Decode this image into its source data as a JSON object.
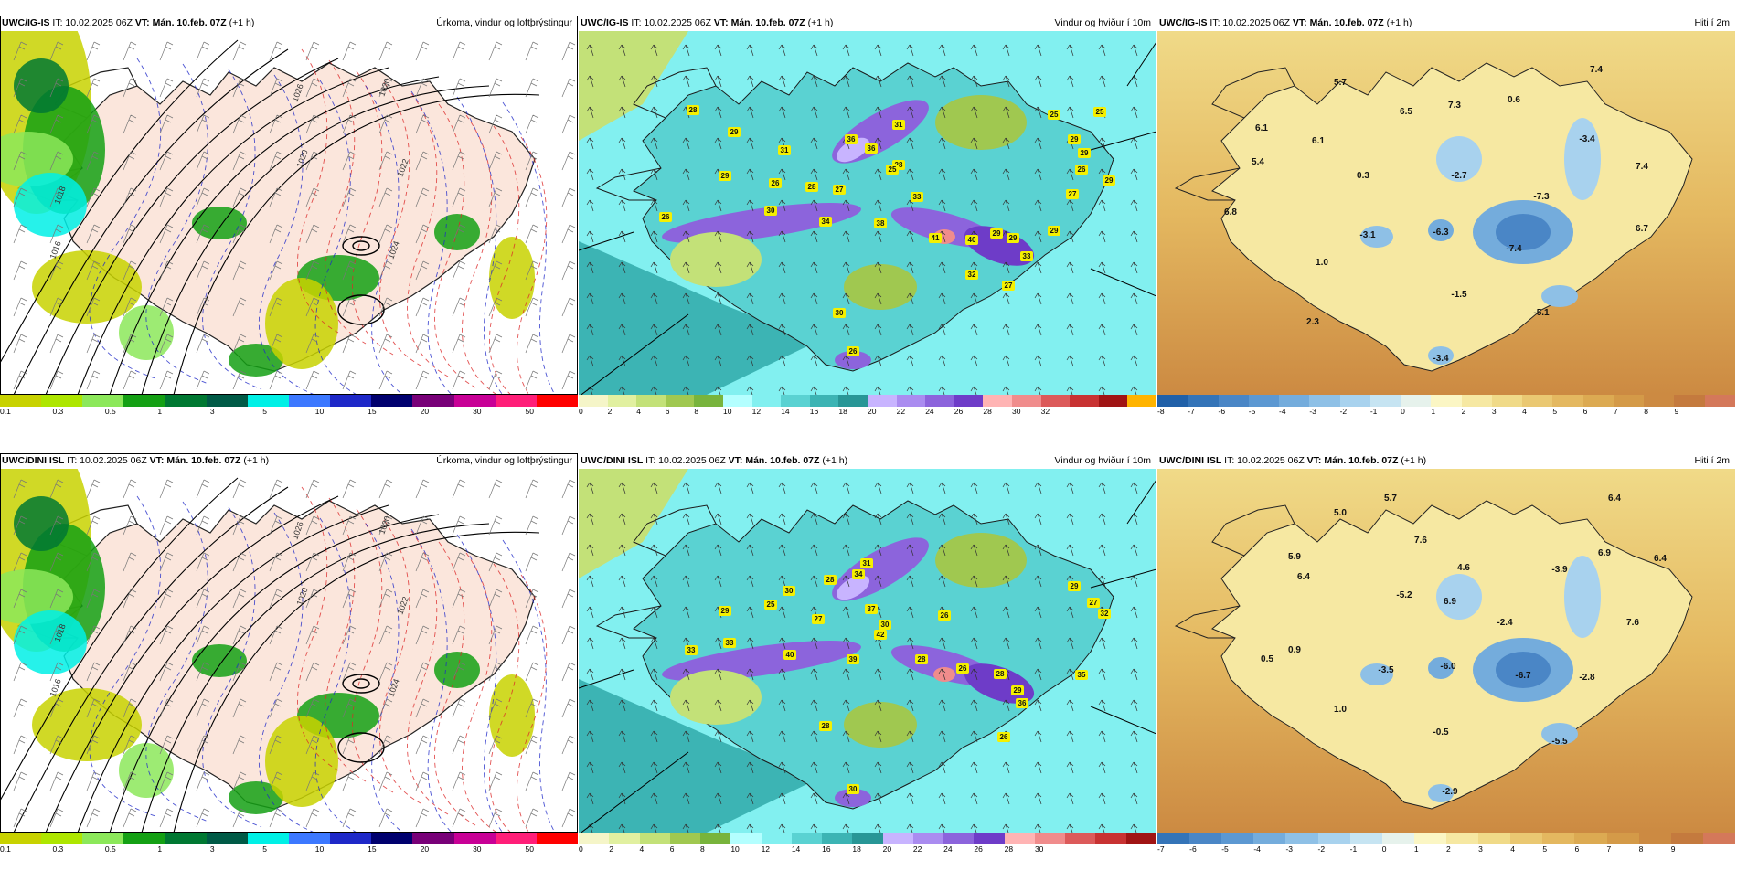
{
  "panels": [
    {
      "id": "p1",
      "model": "UWC/IG-IS",
      "issue": "IT: 10.02.2025 06Z",
      "valid": "VT: Mán. 10.feb. 07Z",
      "lead": "(+1 h)",
      "title": "Úrkoma, vindur og loftþrýstingur",
      "kind": "precip",
      "colorbar": {
        "colors": [
          "#c8d200",
          "#aee600",
          "#8ce85a",
          "#14a014",
          "#007832",
          "#005a46",
          "#00f0e6",
          "#3c78ff",
          "#1e28c8",
          "#00006e",
          "#780078",
          "#c80096",
          "#ff1e78",
          "#ff0000"
        ],
        "ticks": [
          "0.1",
          "0.3",
          "0.5",
          "1",
          "3",
          "5",
          "10",
          "15",
          "20",
          "30",
          "50"
        ]
      },
      "map_labels": [],
      "contour_labels": [
        "1020",
        "1022",
        "1024",
        "1016",
        "1018",
        "1020",
        "1026"
      ]
    },
    {
      "id": "p2",
      "model": "UWC/IG-IS",
      "issue": "IT: 10.02.2025 06Z",
      "valid": "VT: Mán. 10.feb. 07Z",
      "lead": "(+1 h)",
      "title": "Vindur og hviður í 10m",
      "kind": "wind",
      "colorbar": {
        "colors": [
          "#f5f5c8",
          "#e1f0a0",
          "#c3e178",
          "#a0c850",
          "#78b43c",
          "#b4ffff",
          "#82f0f0",
          "#5ad2d2",
          "#3cb4b4",
          "#289696",
          "#c8b4ff",
          "#aa8cf0",
          "#8c64dc",
          "#6e3cc8",
          "#ffb4b4",
          "#f08c8c",
          "#dc5a5a",
          "#c83232",
          "#a01414",
          "#ffb400"
        ],
        "ticks": [
          "0",
          "2",
          "4",
          "6",
          "8",
          "10",
          "12",
          "14",
          "16",
          "18",
          "20",
          "22",
          "24",
          "26",
          "28",
          "30",
          "32"
        ]
      },
      "map_labels": [
        "28",
        "29",
        "31",
        "31",
        "36",
        "36",
        "28",
        "29",
        "26",
        "28",
        "27",
        "30",
        "25",
        "34",
        "38",
        "33",
        "26",
        "41",
        "40",
        "29",
        "29",
        "33",
        "29",
        "25",
        "26",
        "29",
        "27",
        "32",
        "27",
        "30",
        "26",
        "25",
        "29",
        "29"
      ]
    },
    {
      "id": "p3",
      "model": "UWC/IG-IS",
      "issue": "IT: 10.02.2025 06Z",
      "valid": "VT: Mán. 10.feb. 07Z",
      "lead": "(+1 h)",
      "title": "Hiti í 2m",
      "kind": "temp",
      "colorbar": {
        "colors": [
          "#2060a8",
          "#3474b8",
          "#4a86c6",
          "#5c98d2",
          "#74acdc",
          "#8ec0e6",
          "#a8d2ee",
          "#c6e4f2",
          "#e6f2ec",
          "#fbf6c4",
          "#f6e8a2",
          "#f0da88",
          "#eac872",
          "#e4b860",
          "#dcaa52",
          "#d49a48",
          "#cc8a42",
          "#c47a3e",
          "#d4785a"
        ],
        "ticks": [
          "-8",
          "-7",
          "-6",
          "-5",
          "-4",
          "-3",
          "-2",
          "-1",
          "0",
          "1",
          "2",
          "3",
          "4",
          "5",
          "6",
          "7",
          "8",
          "9"
        ]
      },
      "map_labels": [
        "5.7",
        "6.1",
        "5.4",
        "6.1",
        "6.5",
        "7.3",
        "0.6",
        "7.4",
        "-3.4",
        "7.4",
        "0.3",
        "-2.7",
        "6.8",
        "-3.1",
        "-6.3",
        "-7.3",
        "6.7",
        "-7.4",
        "1.0",
        "-1.5",
        "-5.1",
        "2.3",
        "-3.4"
      ]
    },
    {
      "id": "p4",
      "model": "UWC/DINI ISL",
      "issue": "IT: 10.02.2025 06Z",
      "valid": "VT: Mán. 10.feb. 07Z",
      "lead": "(+1 h)",
      "title": "Úrkoma, vindur og loftþrýstingur",
      "kind": "precip",
      "colorbar": {
        "colors": [
          "#c8d200",
          "#aee600",
          "#8ce85a",
          "#14a014",
          "#007832",
          "#005a46",
          "#00f0e6",
          "#3c78ff",
          "#1e28c8",
          "#00006e",
          "#780078",
          "#c80096",
          "#ff1e78",
          "#ff0000"
        ],
        "ticks": [
          "0.1",
          "0.3",
          "0.5",
          "1",
          "3",
          "5",
          "10",
          "15",
          "20",
          "30",
          "50"
        ]
      },
      "map_labels": [],
      "contour_labels": [
        "1020",
        "1022",
        "1024",
        "1016",
        "1018",
        "1020",
        "1026"
      ]
    },
    {
      "id": "p5",
      "model": "UWC/DINI ISL",
      "issue": "IT: 10.02.2025 06Z",
      "valid": "VT: Mán. 10.feb. 07Z",
      "lead": "(+1 h)",
      "title": "Vindur og hviður í 10m",
      "kind": "wind",
      "colorbar": {
        "colors": [
          "#f5f5c8",
          "#e1f0a0",
          "#c3e178",
          "#a0c850",
          "#78b43c",
          "#b4ffff",
          "#82f0f0",
          "#5ad2d2",
          "#3cb4b4",
          "#289696",
          "#c8b4ff",
          "#aa8cf0",
          "#8c64dc",
          "#6e3cc8",
          "#ffb4b4",
          "#f08c8c",
          "#dc5a5a",
          "#c83232",
          "#a01414"
        ],
        "ticks": [
          "0",
          "2",
          "4",
          "6",
          "8",
          "10",
          "12",
          "14",
          "16",
          "18",
          "20",
          "22",
          "24",
          "26",
          "28",
          "30"
        ]
      },
      "map_labels": [
        "31",
        "28",
        "34",
        "30",
        "25",
        "37",
        "29",
        "27",
        "30",
        "26",
        "29",
        "27",
        "32",
        "33",
        "33",
        "40",
        "42",
        "39",
        "28",
        "26",
        "28",
        "29",
        "35",
        "28",
        "36",
        "26",
        "30"
      ]
    },
    {
      "id": "p6",
      "model": "UWC/DINI ISL",
      "issue": "IT: 10.02.2025 06Z",
      "valid": "VT: Mán. 10.feb. 07Z",
      "lead": "(+1 h)",
      "title": "Hiti í 2m",
      "kind": "temp",
      "colorbar": {
        "colors": [
          "#3474b8",
          "#4a86c6",
          "#5c98d2",
          "#74acdc",
          "#8ec0e6",
          "#a8d2ee",
          "#c6e4f2",
          "#e6f2ec",
          "#fbf6c4",
          "#f6e8a2",
          "#f0da88",
          "#eac872",
          "#e4b860",
          "#dcaa52",
          "#d49a48",
          "#cc8a42",
          "#c47a3e",
          "#d4785a"
        ],
        "ticks": [
          "-7",
          "-6",
          "-5",
          "-4",
          "-3",
          "-2",
          "-1",
          "0",
          "1",
          "2",
          "3",
          "4",
          "5",
          "6",
          "7",
          "8",
          "9"
        ]
      },
      "map_labels": [
        "5.7",
        "5.0",
        "6.4",
        "5.9",
        "7.6",
        "6.9",
        "6.4",
        "6.4",
        "4.6",
        "-3.9",
        "6.9",
        "-2.4",
        "-5.2",
        "7.6",
        "0.5",
        "0.9",
        "-3.5",
        "-6.0",
        "-6.7",
        "-2.8",
        "1.0",
        "-0.5",
        "-5.5",
        "-2.9"
      ]
    }
  ]
}
